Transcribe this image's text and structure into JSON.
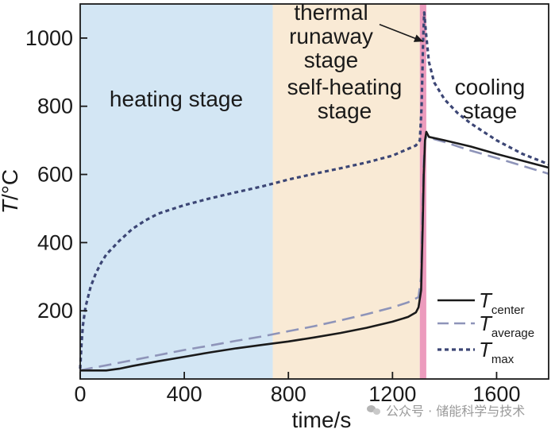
{
  "chart_data": {
    "type": "line",
    "xlabel": "time/s",
    "ylabel_italic": "T",
    "ylabel_rest": "/°C",
    "xlim": [
      0,
      1800
    ],
    "ylim": [
      0,
      1100
    ],
    "x_ticks": [
      0,
      400,
      800,
      1200,
      1600
    ],
    "y_ticks": [
      200,
      400,
      600,
      800,
      1000
    ],
    "grid": false,
    "legend_position": "bottom-right",
    "stages": [
      {
        "label_lines": [
          "heating stage"
        ],
        "x_start": 0,
        "x_end": 740,
        "color": "#d3e6f4"
      },
      {
        "label_lines": [
          "self-heating",
          "stage"
        ],
        "x_start": 740,
        "x_end": 1305,
        "color": "#f9ead5"
      },
      {
        "label_lines": [
          "thermal",
          "runaway",
          "stage"
        ],
        "x_start": 1305,
        "x_end": 1330,
        "color": "#ec9bbd"
      },
      {
        "label_lines": [
          "cooling",
          "stage"
        ],
        "x_start": 1330,
        "x_end": 1800,
        "color": "#ffffff"
      }
    ],
    "annotation_arrow": {
      "from": [
        1150,
        1040
      ],
      "to": [
        1318,
        990
      ]
    },
    "series": [
      {
        "symbol": "T",
        "subscript": "center",
        "style": "solid",
        "color": "#1a1a1a",
        "points": [
          [
            0,
            25
          ],
          [
            30,
            25
          ],
          [
            100,
            25
          ],
          [
            150,
            30
          ],
          [
            200,
            38
          ],
          [
            300,
            52
          ],
          [
            400,
            65
          ],
          [
            500,
            78
          ],
          [
            600,
            90
          ],
          [
            700,
            100
          ],
          [
            800,
            110
          ],
          [
            900,
            122
          ],
          [
            1000,
            135
          ],
          [
            1100,
            150
          ],
          [
            1200,
            168
          ],
          [
            1260,
            182
          ],
          [
            1290,
            195
          ],
          [
            1300,
            210
          ],
          [
            1310,
            260
          ],
          [
            1316,
            450
          ],
          [
            1320,
            600
          ],
          [
            1325,
            700
          ],
          [
            1330,
            725
          ],
          [
            1340,
            710
          ],
          [
            1400,
            700
          ],
          [
            1500,
            682
          ],
          [
            1600,
            660
          ],
          [
            1700,
            640
          ],
          [
            1800,
            620
          ]
        ]
      },
      {
        "symbol": "T",
        "subscript": "average",
        "style": "dash",
        "color": "#8e94b9",
        "points": [
          [
            0,
            25
          ],
          [
            30,
            30
          ],
          [
            100,
            40
          ],
          [
            200,
            55
          ],
          [
            300,
            70
          ],
          [
            400,
            85
          ],
          [
            500,
            98
          ],
          [
            600,
            112
          ],
          [
            700,
            125
          ],
          [
            800,
            140
          ],
          [
            900,
            155
          ],
          [
            1000,
            172
          ],
          [
            1100,
            190
          ],
          [
            1200,
            210
          ],
          [
            1260,
            225
          ],
          [
            1300,
            240
          ],
          [
            1310,
            300
          ],
          [
            1316,
            500
          ],
          [
            1320,
            640
          ],
          [
            1325,
            700
          ],
          [
            1330,
            710
          ],
          [
            1400,
            695
          ],
          [
            1500,
            670
          ],
          [
            1600,
            648
          ],
          [
            1700,
            625
          ],
          [
            1800,
            602
          ]
        ]
      },
      {
        "symbol": "T",
        "subscript": "max",
        "style": "dot",
        "color": "#3c4675",
        "points": [
          [
            0,
            30
          ],
          [
            5,
            100
          ],
          [
            10,
            155
          ],
          [
            20,
            210
          ],
          [
            40,
            270
          ],
          [
            60,
            310
          ],
          [
            80,
            340
          ],
          [
            100,
            365
          ],
          [
            150,
            405
          ],
          [
            200,
            440
          ],
          [
            250,
            465
          ],
          [
            300,
            485
          ],
          [
            400,
            510
          ],
          [
            500,
            530
          ],
          [
            600,
            548
          ],
          [
            700,
            565
          ],
          [
            800,
            585
          ],
          [
            900,
            602
          ],
          [
            1000,
            618
          ],
          [
            1100,
            635
          ],
          [
            1200,
            655
          ],
          [
            1290,
            685
          ],
          [
            1305,
            700
          ],
          [
            1312,
            800
          ],
          [
            1318,
            1000
          ],
          [
            1322,
            1075
          ],
          [
            1328,
            1020
          ],
          [
            1340,
            930
          ],
          [
            1360,
            870
          ],
          [
            1400,
            820
          ],
          [
            1450,
            780
          ],
          [
            1500,
            750
          ],
          [
            1600,
            700
          ],
          [
            1700,
            660
          ],
          [
            1800,
            630
          ]
        ]
      }
    ]
  },
  "watermark": {
    "text": "公众号 · 储能科学与技术"
  }
}
